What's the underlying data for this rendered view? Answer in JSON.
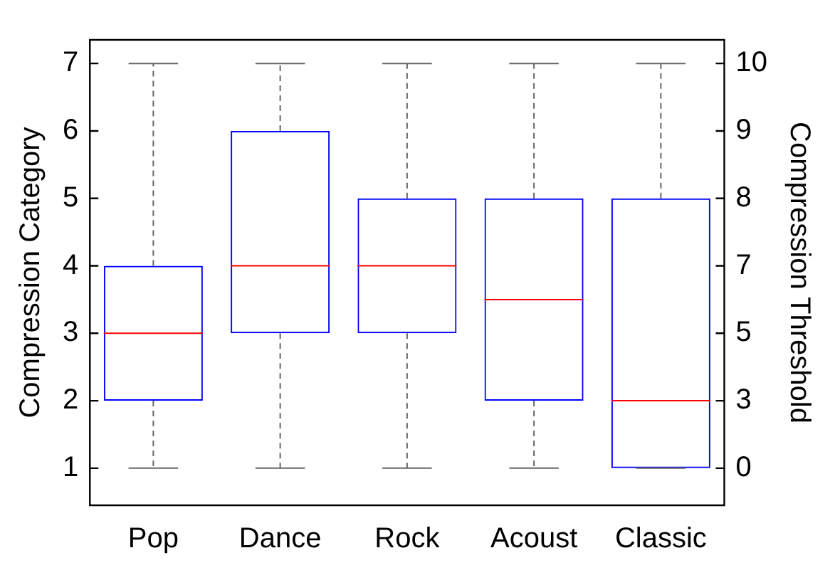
{
  "chart_data": {
    "type": "box",
    "categories": [
      "Pop",
      "Dance",
      "Rock",
      "Acoust",
      "Classic"
    ],
    "series": [
      {
        "color": "#0000ff",
        "boxes": [
          {
            "low": 1,
            "q1": 2,
            "median": 3,
            "q3": 4,
            "high": 7
          },
          {
            "low": 1,
            "q1": 3,
            "median": 4,
            "q3": 6,
            "high": 7
          },
          {
            "low": 1,
            "q1": 3,
            "median": 4,
            "q3": 5,
            "high": 7
          },
          {
            "low": 1,
            "q1": 2,
            "median": 3.5,
            "q3": 5,
            "high": 7
          },
          {
            "low": 1,
            "q1": 1,
            "median": 2,
            "q3": 5,
            "high": 7
          }
        ]
      }
    ],
    "ylabel": "Compression Category",
    "y2label": "Compression Threshold",
    "ylim": [
      0.45,
      7.35
    ],
    "yticks": [
      1,
      2,
      3,
      4,
      5,
      6,
      7
    ],
    "y2_categories": [
      "10",
      "9",
      "8",
      "7",
      "5",
      "3",
      "0"
    ],
    "grid": false,
    "legend": false
  }
}
